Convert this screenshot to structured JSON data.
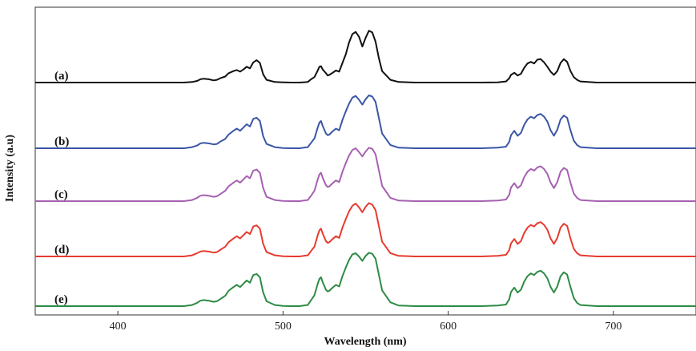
{
  "chart_data": {
    "type": "line",
    "xlabel": "Wavelength (nm)",
    "ylabel": "Intensity (a.u)",
    "xlim": [
      350,
      750
    ],
    "xticks": [
      400,
      500,
      600,
      700
    ],
    "y_ticks_shown": false,
    "grid": false,
    "legend": "none (series identified by inline labels on the left)",
    "x": [
      350,
      360,
      370,
      380,
      390,
      400,
      410,
      420,
      430,
      440,
      445,
      448,
      450,
      452,
      455,
      458,
      460,
      462,
      465,
      467,
      470,
      472,
      474,
      476,
      478,
      480,
      482,
      484,
      486,
      488,
      490,
      495,
      500,
      505,
      510,
      515,
      517,
      519,
      521,
      522,
      523,
      524,
      526,
      527,
      528,
      530,
      532,
      534,
      536,
      538,
      540,
      542,
      544,
      546,
      548,
      550,
      552,
      554,
      556,
      558,
      560,
      565,
      570,
      580,
      590,
      600,
      610,
      620,
      630,
      635,
      637,
      638,
      640,
      642,
      644,
      646,
      648,
      650,
      652,
      654,
      656,
      658,
      660,
      662,
      664,
      666,
      668,
      670,
      672,
      674,
      676,
      678,
      680,
      690,
      700,
      710,
      720,
      730,
      740,
      750
    ],
    "series": [
      {
        "name": "(a)",
        "color": "#111111",
        "values": [
          0,
          0,
          0,
          0,
          0,
          0,
          0,
          0,
          0,
          0,
          0.01,
          0.03,
          0.06,
          0.07,
          0.06,
          0.04,
          0.05,
          0.08,
          0.11,
          0.17,
          0.21,
          0.23,
          0.2,
          0.24,
          0.29,
          0.26,
          0.37,
          0.41,
          0.36,
          0.15,
          0.05,
          0.01,
          0.005,
          0,
          0,
          0.01,
          0.06,
          0.1,
          0.22,
          0.29,
          0.3,
          0.24,
          0.17,
          0.13,
          0.14,
          0.18,
          0.22,
          0.2,
          0.36,
          0.52,
          0.74,
          0.89,
          0.93,
          0.84,
          0.66,
          0.82,
          0.95,
          0.92,
          0.75,
          0.45,
          0.21,
          0.05,
          0.01,
          0,
          0,
          0,
          0,
          0,
          0.005,
          0.02,
          0.08,
          0.14,
          0.18,
          0.13,
          0.16,
          0.27,
          0.35,
          0.38,
          0.35,
          0.42,
          0.43,
          0.37,
          0.29,
          0.2,
          0.14,
          0.21,
          0.36,
          0.43,
          0.38,
          0.21,
          0.1,
          0.05,
          0.02,
          0,
          0,
          0,
          0,
          0,
          0,
          0
        ]
      },
      {
        "name": "(b)",
        "color": "#3a56a5",
        "values": [
          0,
          0,
          0,
          0,
          0,
          0,
          0,
          0,
          0,
          0,
          0.02,
          0.05,
          0.09,
          0.1,
          0.09,
          0.07,
          0.08,
          0.12,
          0.17,
          0.25,
          0.32,
          0.36,
          0.32,
          0.38,
          0.44,
          0.4,
          0.54,
          0.56,
          0.5,
          0.22,
          0.08,
          0.02,
          0.005,
          0,
          0,
          0.02,
          0.1,
          0.18,
          0.38,
          0.47,
          0.5,
          0.41,
          0.27,
          0.24,
          0.25,
          0.31,
          0.36,
          0.33,
          0.52,
          0.68,
          0.82,
          0.93,
          0.96,
          0.89,
          0.8,
          0.9,
          0.97,
          0.95,
          0.85,
          0.56,
          0.27,
          0.06,
          0.01,
          0,
          0,
          0,
          0,
          0,
          0.01,
          0.03,
          0.12,
          0.24,
          0.32,
          0.23,
          0.28,
          0.43,
          0.53,
          0.58,
          0.55,
          0.61,
          0.63,
          0.58,
          0.49,
          0.33,
          0.23,
          0.34,
          0.53,
          0.6,
          0.56,
          0.33,
          0.14,
          0.06,
          0.02,
          0,
          0,
          0,
          0,
          0,
          0,
          0
        ]
      },
      {
        "name": "(c)",
        "color": "#a660b1",
        "values": [
          0,
          0,
          0,
          0,
          0,
          0,
          0,
          0,
          0,
          0,
          0.02,
          0.06,
          0.1,
          0.11,
          0.1,
          0.08,
          0.09,
          0.13,
          0.19,
          0.27,
          0.34,
          0.38,
          0.34,
          0.4,
          0.46,
          0.42,
          0.56,
          0.58,
          0.52,
          0.24,
          0.08,
          0.02,
          0.005,
          0,
          0,
          0.02,
          0.1,
          0.19,
          0.4,
          0.49,
          0.52,
          0.43,
          0.29,
          0.26,
          0.27,
          0.33,
          0.38,
          0.35,
          0.54,
          0.7,
          0.84,
          0.94,
          0.97,
          0.9,
          0.82,
          0.91,
          0.98,
          0.96,
          0.86,
          0.57,
          0.28,
          0.06,
          0.01,
          0,
          0,
          0,
          0,
          0,
          0.01,
          0.03,
          0.12,
          0.25,
          0.33,
          0.24,
          0.29,
          0.44,
          0.54,
          0.59,
          0.56,
          0.62,
          0.64,
          0.59,
          0.5,
          0.34,
          0.24,
          0.35,
          0.54,
          0.61,
          0.57,
          0.34,
          0.14,
          0.06,
          0.02,
          0,
          0,
          0,
          0,
          0,
          0,
          0
        ]
      },
      {
        "name": "(d)",
        "color": "#e63b30",
        "values": [
          0,
          0,
          0,
          0,
          0,
          0,
          0,
          0,
          0,
          0,
          0.02,
          0.06,
          0.09,
          0.1,
          0.09,
          0.07,
          0.08,
          0.12,
          0.18,
          0.26,
          0.33,
          0.37,
          0.33,
          0.39,
          0.45,
          0.41,
          0.55,
          0.57,
          0.51,
          0.23,
          0.08,
          0.02,
          0.005,
          0,
          0,
          0.02,
          0.1,
          0.18,
          0.39,
          0.48,
          0.51,
          0.42,
          0.28,
          0.25,
          0.26,
          0.32,
          0.37,
          0.34,
          0.53,
          0.69,
          0.83,
          0.93,
          0.97,
          0.9,
          0.81,
          0.91,
          0.98,
          0.95,
          0.85,
          0.56,
          0.27,
          0.06,
          0.01,
          0,
          0,
          0,
          0,
          0,
          0.01,
          0.03,
          0.12,
          0.24,
          0.32,
          0.23,
          0.28,
          0.43,
          0.53,
          0.58,
          0.55,
          0.61,
          0.63,
          0.58,
          0.49,
          0.33,
          0.23,
          0.34,
          0.53,
          0.6,
          0.56,
          0.33,
          0.14,
          0.06,
          0.02,
          0,
          0,
          0,
          0,
          0,
          0,
          0
        ]
      },
      {
        "name": "(e)",
        "color": "#2e8b44",
        "values": [
          0,
          0,
          0,
          0,
          0,
          0,
          0,
          0,
          0,
          0,
          0.02,
          0.06,
          0.1,
          0.11,
          0.1,
          0.08,
          0.09,
          0.13,
          0.19,
          0.28,
          0.35,
          0.39,
          0.35,
          0.41,
          0.47,
          0.43,
          0.57,
          0.59,
          0.53,
          0.25,
          0.09,
          0.02,
          0.005,
          0,
          0,
          0.02,
          0.11,
          0.2,
          0.41,
          0.5,
          0.53,
          0.44,
          0.3,
          0.27,
          0.28,
          0.34,
          0.39,
          0.36,
          0.55,
          0.71,
          0.85,
          0.95,
          0.97,
          0.91,
          0.83,
          0.92,
          0.98,
          0.96,
          0.87,
          0.58,
          0.29,
          0.07,
          0.01,
          0,
          0,
          0,
          0,
          0,
          0.01,
          0.03,
          0.13,
          0.26,
          0.34,
          0.25,
          0.3,
          0.45,
          0.55,
          0.6,
          0.57,
          0.63,
          0.65,
          0.6,
          0.51,
          0.35,
          0.25,
          0.36,
          0.55,
          0.62,
          0.58,
          0.35,
          0.15,
          0.06,
          0.02,
          0,
          0,
          0,
          0,
          0,
          0,
          0
        ]
      }
    ]
  }
}
